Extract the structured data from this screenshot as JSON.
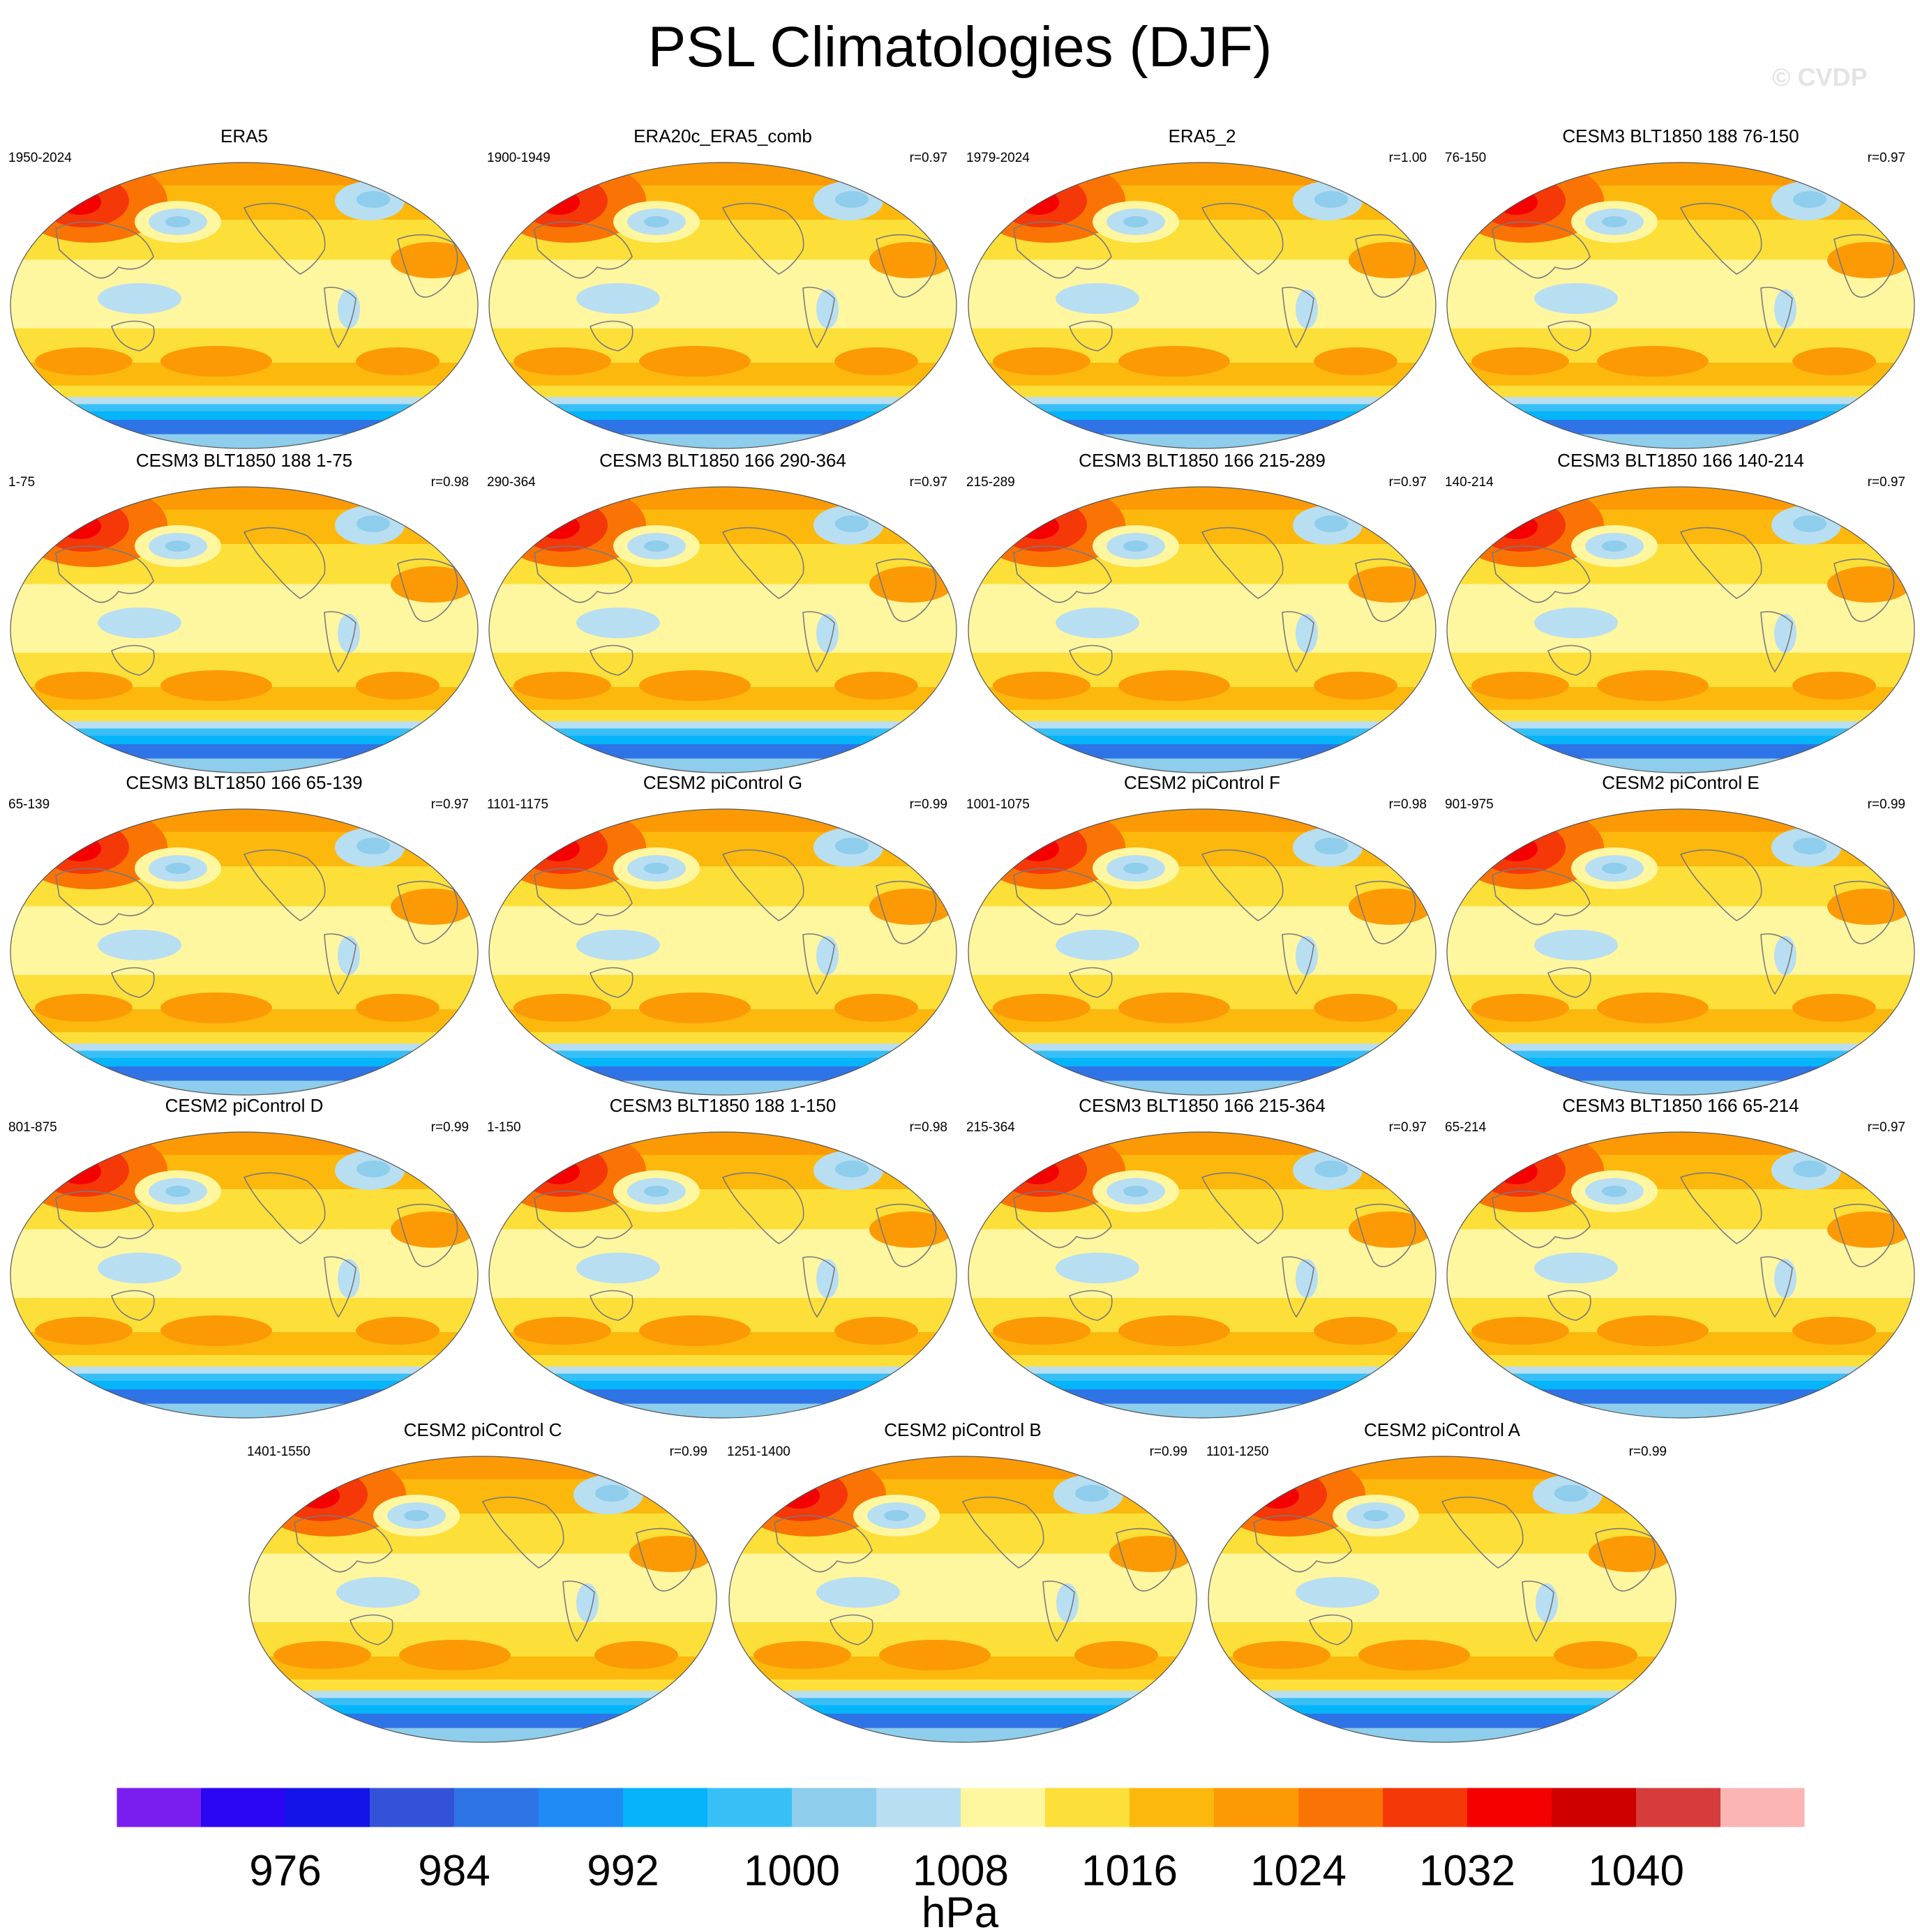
{
  "title": "PSL Climatologies (DJF)",
  "watermark": "© CVDP",
  "chart_data": {
    "type": "heatmap",
    "variable": "PSL",
    "season": "DJF",
    "projection": "global map (Robinson-like)",
    "panels": [
      {
        "title": "ERA5",
        "period": "1950-2024",
        "r": ""
      },
      {
        "title": "ERA20c_ERA5_comb",
        "period": "1900-1949",
        "r": "r=0.97"
      },
      {
        "title": "ERA5_2",
        "period": "1979-2024",
        "r": "r=1.00"
      },
      {
        "title": "CESM3 BLT1850 188 76-150",
        "period": "76-150",
        "r": "r=0.97"
      },
      {
        "title": "CESM3 BLT1850 188 1-75",
        "period": "1-75",
        "r": "r=0.98"
      },
      {
        "title": "CESM3 BLT1850 166 290-364",
        "period": "290-364",
        "r": "r=0.97"
      },
      {
        "title": "CESM3 BLT1850 166 215-289",
        "period": "215-289",
        "r": "r=0.97"
      },
      {
        "title": "CESM3 BLT1850 166 140-214",
        "period": "140-214",
        "r": "r=0.97"
      },
      {
        "title": "CESM3 BLT1850 166 65-139",
        "period": "65-139",
        "r": "r=0.97"
      },
      {
        "title": "CESM2 piControl G",
        "period": "1101-1175",
        "r": "r=0.99"
      },
      {
        "title": "CESM2 piControl F",
        "period": "1001-1075",
        "r": "r=0.98"
      },
      {
        "title": "CESM2 piControl E",
        "period": "901-975",
        "r": "r=0.99"
      },
      {
        "title": "CESM2 piControl D",
        "period": "801-875",
        "r": "r=0.99"
      },
      {
        "title": "CESM3 BLT1850 188 1-150",
        "period": "1-150",
        "r": "r=0.98"
      },
      {
        "title": "CESM3 BLT1850 166 215-364",
        "period": "215-364",
        "r": "r=0.97"
      },
      {
        "title": "CESM3 BLT1850 166 65-214",
        "period": "65-214",
        "r": "r=0.97"
      },
      {
        "title": "CESM2 piControl C",
        "period": "1401-1550",
        "r": "r=0.99"
      },
      {
        "title": "CESM2 piControl B",
        "period": "1251-1400",
        "r": "r=0.99"
      },
      {
        "title": "CESM2 piControl A",
        "period": "1101-1250",
        "r": "r=0.99"
      }
    ],
    "colorbar": {
      "colors": [
        "#7a1ef0",
        "#2b06f2",
        "#1414e8",
        "#3452d8",
        "#2f74e6",
        "#1f8cf6",
        "#06b4fa",
        "#38c0f6",
        "#8ecdeb",
        "#b8def2",
        "#fff6a0",
        "#fddf3a",
        "#fcb80d",
        "#fc9a06",
        "#fa7405",
        "#f43808",
        "#f40000",
        "#cf0000",
        "#d63c3c",
        "#fcb5b5"
      ],
      "tick_labels": [
        "976",
        "984",
        "992",
        "1000",
        "1008",
        "1016",
        "1024",
        "1032",
        "1040"
      ],
      "tick_values": [
        976,
        984,
        992,
        1000,
        1008,
        1016,
        1024,
        1032,
        1040
      ],
      "label": "hPa"
    }
  }
}
